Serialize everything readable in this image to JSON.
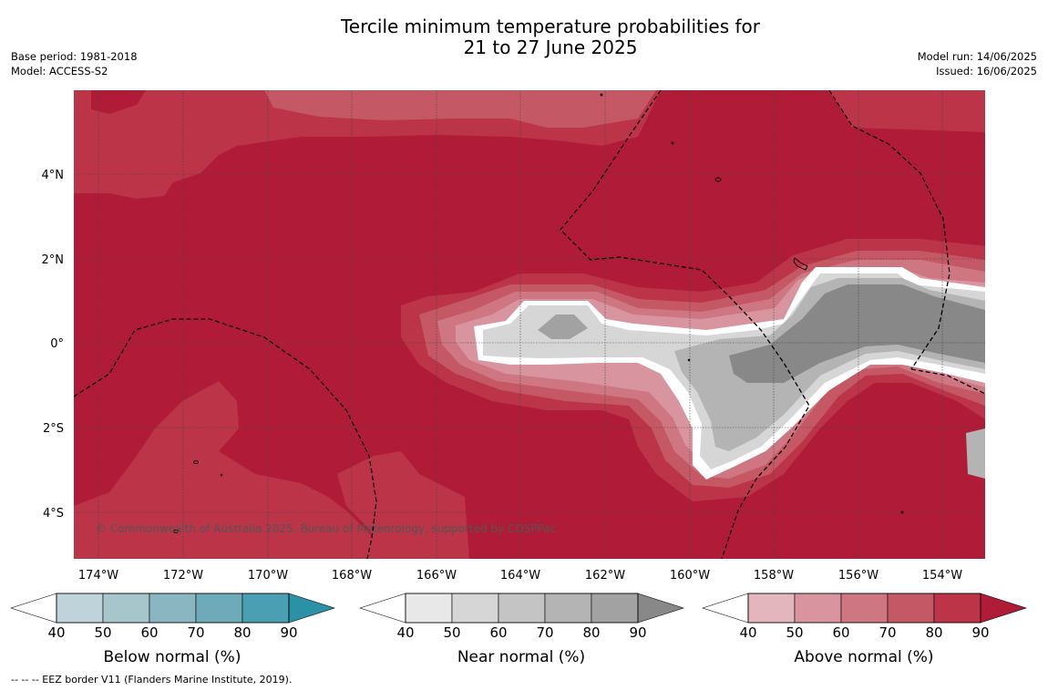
{
  "title_line1": "Tercile minimum temperature probabilities for",
  "title_line2": "21 to 27 June 2025",
  "base_period": "Base period: 1981-2018",
  "model": "Model: ACCESS-S2",
  "model_run": "Model run: 14/06/2025",
  "issued": "Issued: 16/06/2025",
  "credit": "© Commonwealth of Australia 2025, Bureau of Meteorology, supported by COSPPac",
  "footer": "--  --  -- EEZ border V11 (Flanders Marine Institute, 2019).",
  "map": {
    "lon_ticks": [
      "174°W",
      "172°W",
      "170°W",
      "168°W",
      "166°W",
      "164°W",
      "162°W",
      "160°W",
      "158°W",
      "156°W",
      "154°W"
    ],
    "lat_ticks": [
      "4°N",
      "2°N",
      "0°",
      "2°S",
      "4°S"
    ]
  },
  "legends": [
    {
      "title": "Below normal (%)",
      "ticks": [
        "40",
        "50",
        "60",
        "70",
        "80",
        "90"
      ],
      "colors": [
        "#bed4da",
        "#a7c6cc",
        "#8ab6c1",
        "#6dabb9",
        "#4aa0b2",
        "#2b91a6"
      ]
    },
    {
      "title": "Near normal (%)",
      "ticks": [
        "40",
        "50",
        "60",
        "70",
        "80",
        "90"
      ],
      "colors": [
        "#e8e8e8",
        "#d6d6d6",
        "#c4c4c4",
        "#b4b4b4",
        "#a2a2a2",
        "#888888"
      ]
    },
    {
      "title": "Above normal (%)",
      "ticks": [
        "40",
        "50",
        "60",
        "70",
        "80",
        "90"
      ],
      "colors": [
        "#e2b6bc",
        "#d8959f",
        "#ce7681",
        "#c55865",
        "#bb3448",
        "#b01c38"
      ]
    }
  ]
}
